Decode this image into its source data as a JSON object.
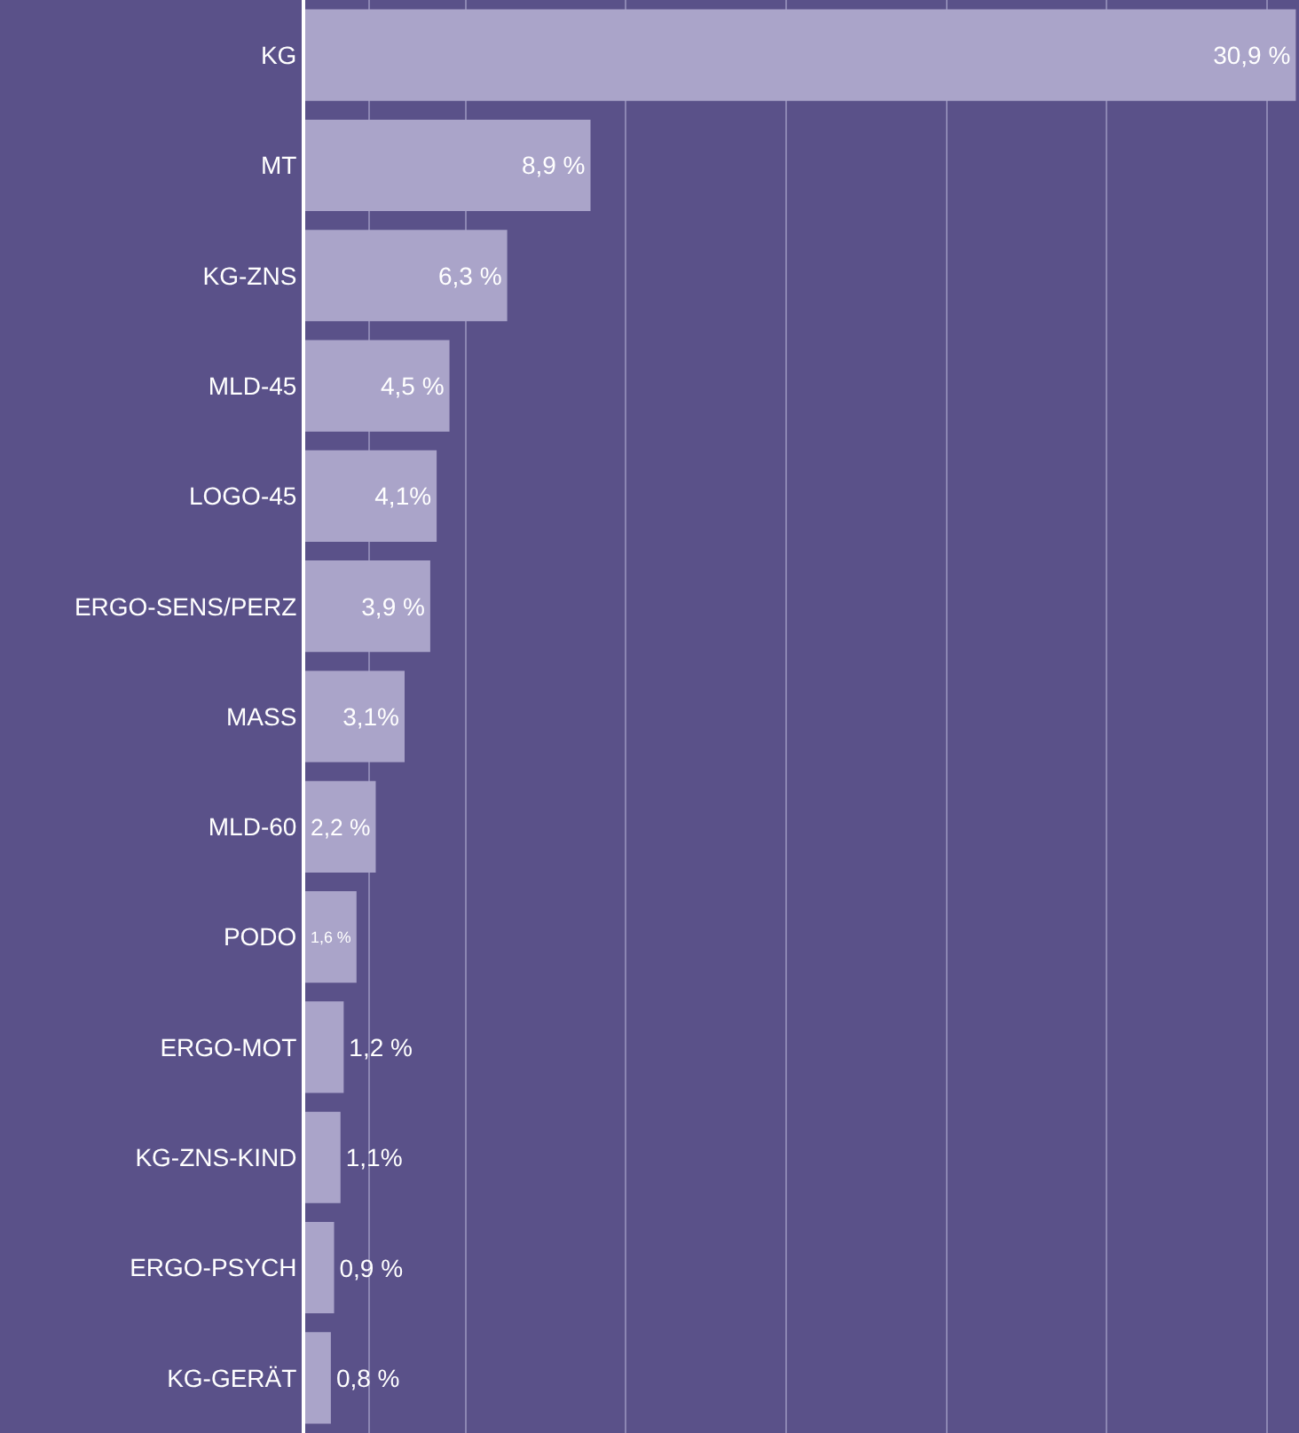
{
  "chart_data": {
    "type": "bar",
    "orientation": "horizontal",
    "categories": [
      "KG",
      "MT",
      "KG-ZNS",
      "MLD-45",
      "LOGO-45",
      "ERGO-SENS/PERZ",
      "MASS",
      "MLD-60",
      "PODO",
      "ERGO-MOT",
      "KG-ZNS-KIND",
      "ERGO-PSYCH",
      "KG-GERÄT"
    ],
    "values": [
      30.9,
      8.9,
      6.3,
      4.5,
      4.1,
      3.9,
      3.1,
      2.2,
      1.6,
      1.2,
      1.1,
      0.9,
      0.8
    ],
    "value_labels": [
      "30,9 %",
      "8,9 %",
      "6,3 %",
      "4,5 %",
      "4,1%",
      "3,9 %",
      "3,1%",
      "2,2 %",
      "1,6 %",
      "1,2 %",
      "1,1%",
      "0,9 %",
      "0,8 %"
    ],
    "color": "#aaa4c9",
    "xlim": [
      0,
      31
    ],
    "xticks": [
      {
        "value": 2,
        "label": null
      },
      {
        "value": 5,
        "label": null
      },
      {
        "value": 10,
        "label": null
      },
      {
        "value": 15,
        "label": null
      },
      {
        "value": 20,
        "label": null
      },
      {
        "value": 25,
        "label": null
      },
      {
        "value": 30,
        "label": null
      }
    ],
    "grid": "x",
    "tick_labels": "y",
    "legend": false
  }
}
